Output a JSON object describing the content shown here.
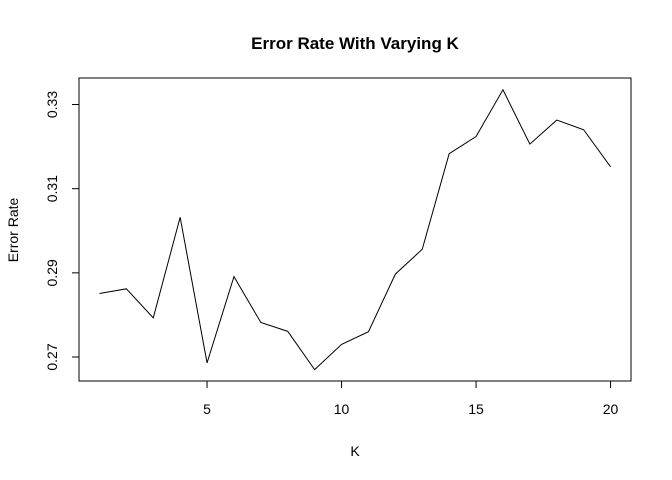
{
  "chart_data": {
    "type": "line",
    "title": "Error Rate With Varying K",
    "xlabel": "K",
    "ylabel": "Error Rate",
    "x": [
      1,
      2,
      3,
      4,
      5,
      6,
      7,
      8,
      9,
      10,
      11,
      12,
      13,
      14,
      15,
      16,
      17,
      18,
      19,
      20
    ],
    "series": [
      {
        "values": [
          0.2851,
          0.2862,
          0.2793,
          0.3032,
          0.2686,
          0.2891,
          0.2782,
          0.2761,
          0.267,
          0.273,
          0.276,
          0.2897,
          0.2956,
          0.3183,
          0.3224,
          0.3335,
          0.3206,
          0.3263,
          0.324,
          0.3152
        ]
      }
    ],
    "xlim": [
      0.24,
      20.76
    ],
    "ylim": [
      0.2643,
      0.3363
    ],
    "x_ticks": [
      5,
      10,
      15,
      20
    ],
    "x_tick_labels": [
      "5",
      "10",
      "15",
      "20"
    ],
    "y_ticks": [
      0.27,
      0.29,
      0.31,
      0.33
    ],
    "y_tick_labels": [
      "0.27",
      "0.29",
      "0.31",
      "0.33"
    ],
    "grid": false,
    "legend": "none",
    "line_color": "#000000"
  }
}
